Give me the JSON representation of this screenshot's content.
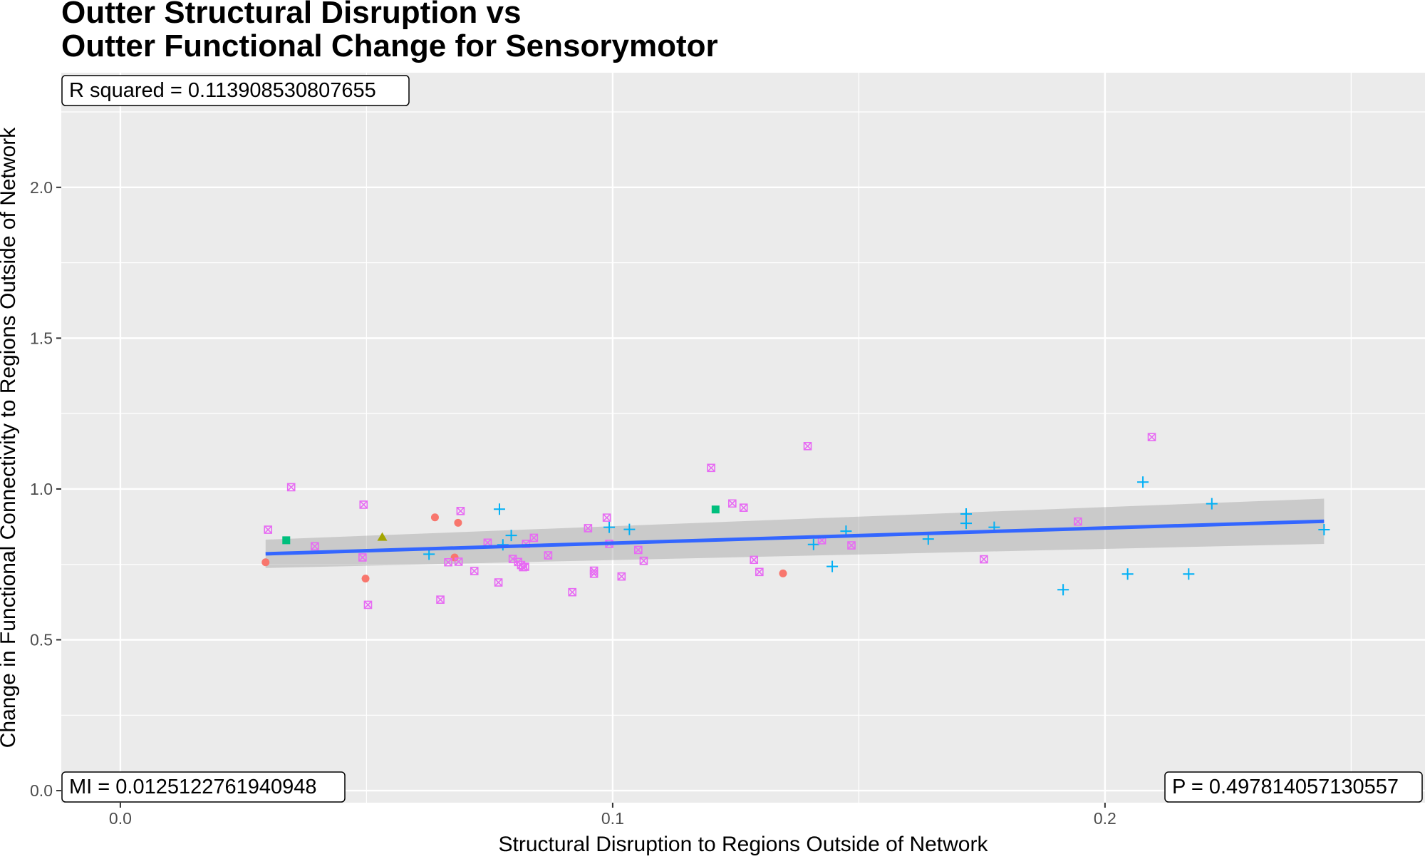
{
  "chart_data": {
    "type": "scatter",
    "title_lines": [
      "Outter Structural Disruption vs",
      "Outter Functional Change for Sensorymotor"
    ],
    "xlabel": "Structural Disruption to Regions Outside of Network",
    "ylabel": "Change in Functional Connectivity to Regions Outside of Network",
    "xlim": [
      -0.012,
      0.265
    ],
    "ylim": [
      -0.04,
      2.38
    ],
    "x_ticks": [
      0.0,
      0.1,
      0.2
    ],
    "x_tick_labels": [
      "0.0",
      "0.1",
      "0.2"
    ],
    "y_ticks": [
      0.0,
      0.5,
      1.0,
      1.5,
      2.0
    ],
    "y_tick_labels": [
      "0.0",
      "0.5",
      "1.0",
      "1.5",
      "2.0"
    ],
    "grid": true,
    "legend": "none",
    "annotations": {
      "r_squared": "R squared =  0.113908530807655",
      "mi": "MI =  0.0125122761940948",
      "p": "P =  0.497814057130557"
    },
    "fit": {
      "x": [
        0.0295,
        0.2445
      ],
      "y": [
        0.785,
        0.893
      ],
      "ci_low": [
        0.738,
        0.818
      ],
      "ci_high": [
        0.832,
        0.968
      ],
      "color": "#3366ff",
      "band_color": "#999999"
    },
    "series": [
      {
        "marker": "circle",
        "color": "#f8766d",
        "points": [
          [
            0.0295,
            0.757
          ],
          [
            0.0498,
            0.703
          ],
          [
            0.0639,
            0.906
          ],
          [
            0.0679,
            0.773
          ],
          [
            0.0686,
            0.888
          ],
          [
            0.1346,
            0.72
          ]
        ]
      },
      {
        "marker": "triangle",
        "color": "#a3a500",
        "points": [
          [
            0.0532,
            0.84
          ]
        ]
      },
      {
        "marker": "square",
        "color": "#00bf7d",
        "points": [
          [
            0.0337,
            0.83
          ],
          [
            0.1209,
            0.932
          ]
        ]
      },
      {
        "marker": "plus",
        "color": "#00b0f6",
        "points": [
          [
            0.0627,
            0.784
          ],
          [
            0.077,
            0.933
          ],
          [
            0.0777,
            0.815
          ],
          [
            0.0794,
            0.846
          ],
          [
            0.0993,
            0.873
          ],
          [
            0.1034,
            0.866
          ],
          [
            0.1408,
            0.816
          ],
          [
            0.1446,
            0.743
          ],
          [
            0.1474,
            0.86
          ],
          [
            0.1641,
            0.834
          ],
          [
            0.1718,
            0.917
          ],
          [
            0.1718,
            0.886
          ],
          [
            0.1775,
            0.873
          ],
          [
            0.1915,
            0.666
          ],
          [
            0.2046,
            0.718
          ],
          [
            0.2077,
            1.023
          ],
          [
            0.217,
            0.718
          ],
          [
            0.2217,
            0.951
          ],
          [
            0.2445,
            0.865
          ]
        ]
      },
      {
        "marker": "square-x",
        "color": "#e76bf3",
        "points": [
          [
            0.03,
            0.865
          ],
          [
            0.0347,
            1.006
          ],
          [
            0.0395,
            0.81
          ],
          [
            0.0494,
            0.948
          ],
          [
            0.0492,
            0.773
          ],
          [
            0.0503,
            0.616
          ],
          [
            0.065,
            0.633
          ],
          [
            0.0666,
            0.757
          ],
          [
            0.0687,
            0.759
          ],
          [
            0.0691,
            0.927
          ],
          [
            0.0719,
            0.728
          ],
          [
            0.0746,
            0.822
          ],
          [
            0.0768,
            0.69
          ],
          [
            0.0797,
            0.768
          ],
          [
            0.0808,
            0.758
          ],
          [
            0.0814,
            0.748
          ],
          [
            0.0818,
            0.741
          ],
          [
            0.0822,
            0.742
          ],
          [
            0.0824,
            0.818
          ],
          [
            0.084,
            0.838
          ],
          [
            0.0869,
            0.78
          ],
          [
            0.0918,
            0.658
          ],
          [
            0.095,
            0.87
          ],
          [
            0.0962,
            0.719
          ],
          [
            0.0962,
            0.729
          ],
          [
            0.0988,
            0.905
          ],
          [
            0.0993,
            0.818
          ],
          [
            0.1018,
            0.71
          ],
          [
            0.1052,
            0.798
          ],
          [
            0.1063,
            0.762
          ],
          [
            0.12,
            1.07
          ],
          [
            0.1243,
            0.952
          ],
          [
            0.1266,
            0.938
          ],
          [
            0.1287,
            0.765
          ],
          [
            0.1298,
            0.725
          ],
          [
            0.1396,
            1.142
          ],
          [
            0.1425,
            0.83
          ],
          [
            0.1485,
            0.813
          ],
          [
            0.1754,
            0.767
          ],
          [
            0.1945,
            0.892
          ],
          [
            0.2095,
            1.172
          ]
        ]
      }
    ]
  }
}
